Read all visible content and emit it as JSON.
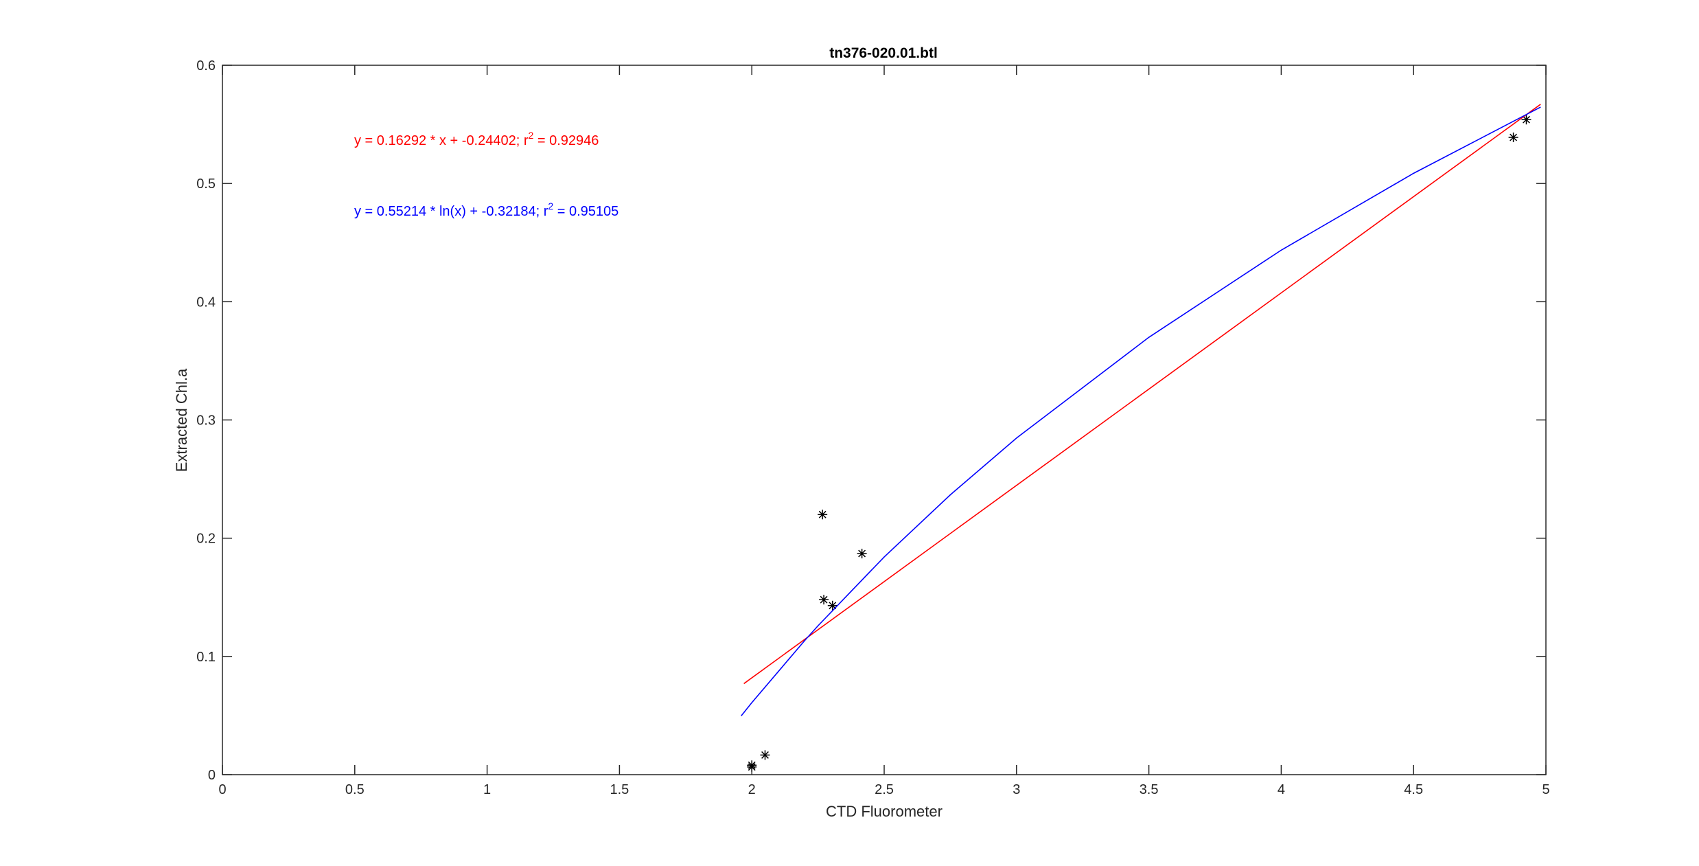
{
  "chart_data": {
    "type": "scatter",
    "title": "tn376-020.01.btl",
    "xlabel": "CTD Fluorometer",
    "ylabel": "Extracted Chl.a",
    "xlim": [
      0,
      5
    ],
    "xticks": [
      0,
      0.5,
      1,
      1.5,
      2,
      2.5,
      3,
      3.5,
      4,
      4.5,
      5
    ],
    "ylim": [
      0,
      0.6
    ],
    "yticks": [
      0,
      0.1,
      0.2,
      0.3,
      0.4,
      0.5,
      0.6
    ],
    "grid": false,
    "annotations": [
      {
        "parts": [
          "y = 0.16292 * x + -0.24402; r",
          "2",
          " = 0.92946"
        ],
        "color": "#ff0000"
      },
      {
        "parts": [
          "y = 0.55214 * ln(x) + -0.32184; r",
          "2",
          " = 0.95105"
        ],
        "color": "#0000ff"
      }
    ],
    "series": [
      {
        "mode": "markers",
        "color": "#000000",
        "x": [
          2.0,
          2.0,
          2.05,
          2.267,
          2.272,
          2.305,
          2.416,
          4.877,
          4.926
        ],
        "values": [
          0.0065,
          0.008,
          0.0166,
          0.22,
          0.148,
          0.143,
          0.187,
          0.539,
          0.554
        ]
      },
      {
        "mode": "line",
        "color": "#ff0000",
        "x": [
          1.97,
          4.98
        ],
        "values": [
          0.077,
          0.567
        ]
      },
      {
        "mode": "line",
        "color": "#0000ff",
        "x": [
          1.96,
          2.0,
          2.2,
          2.25,
          2.5,
          2.75,
          3,
          3.5,
          4,
          4.5,
          4.98
        ],
        "values": [
          0.0497,
          0.0609,
          0.1135,
          0.1259,
          0.1841,
          0.2367,
          0.2847,
          0.3699,
          0.4436,
          0.5086,
          0.5646
        ]
      }
    ]
  }
}
